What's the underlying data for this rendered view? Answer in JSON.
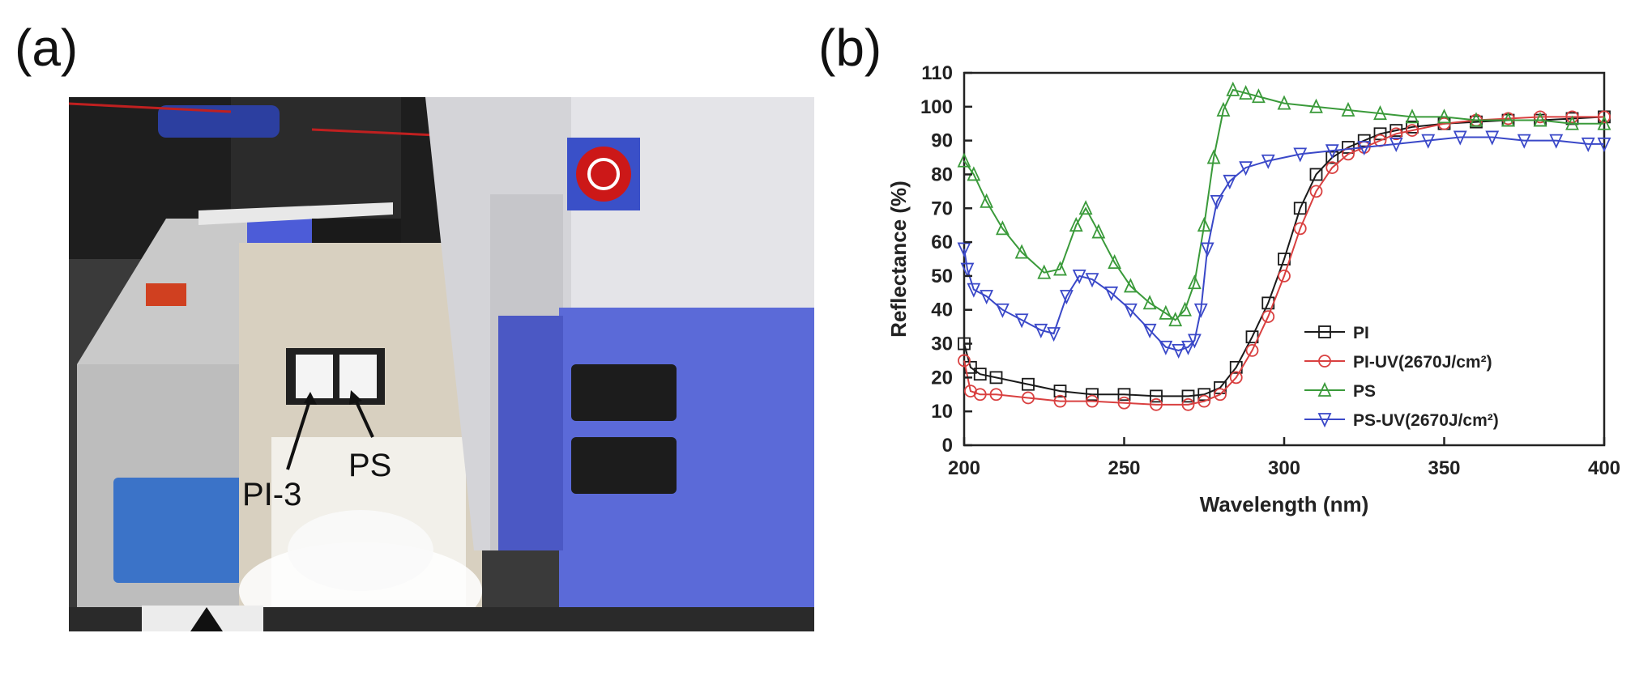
{
  "panels": {
    "a": "(a)",
    "b": "(b)"
  },
  "photo": {
    "labels": {
      "pi": "PI-3",
      "ps": "PS"
    }
  },
  "chart_data": {
    "type": "line",
    "xlabel": "Wavelength (nm)",
    "ylabel": "Reflectance (%)",
    "xlim": [
      200,
      400
    ],
    "ylim": [
      0,
      110
    ],
    "xticks": [
      200,
      250,
      300,
      350,
      400
    ],
    "yticks": [
      0,
      10,
      20,
      30,
      40,
      50,
      60,
      70,
      80,
      90,
      100,
      110
    ],
    "legend_position": "lower-right",
    "series": [
      {
        "name": "PI",
        "color": "#1a1a1a",
        "marker": "square",
        "x": [
          200,
          202,
          205,
          210,
          220,
          230,
          240,
          250,
          260,
          270,
          275,
          280,
          285,
          290,
          295,
          300,
          305,
          310,
          315,
          320,
          325,
          330,
          335,
          340,
          350,
          360,
          370,
          380,
          390,
          400
        ],
        "y": [
          30,
          23,
          21,
          20,
          18,
          16,
          15,
          15,
          14.5,
          14.5,
          15,
          17,
          23,
          32,
          42,
          55,
          70,
          80,
          85,
          88,
          90,
          92,
          93,
          94,
          95,
          95.5,
          96,
          96,
          96.5,
          97
        ]
      },
      {
        "name": "PI-UV(2670J/cm²)",
        "color": "#d94040",
        "marker": "circle",
        "x": [
          200,
          202,
          205,
          210,
          220,
          230,
          240,
          250,
          260,
          270,
          275,
          280,
          285,
          290,
          295,
          300,
          305,
          310,
          315,
          320,
          325,
          330,
          335,
          340,
          350,
          360,
          370,
          380,
          390,
          400
        ],
        "y": [
          25,
          16,
          15,
          15,
          14,
          13,
          13,
          12.5,
          12,
          12,
          13,
          15,
          20,
          28,
          38,
          50,
          64,
          75,
          82,
          86,
          88,
          90,
          92,
          93,
          95,
          96,
          96.5,
          97,
          97,
          97
        ]
      },
      {
        "name": "PS",
        "color": "#3a9a3a",
        "marker": "triangle-up",
        "x": [
          200,
          203,
          207,
          212,
          218,
          225,
          230,
          235,
          238,
          242,
          247,
          252,
          258,
          263,
          266,
          269,
          272,
          275,
          278,
          281,
          284,
          288,
          292,
          300,
          310,
          320,
          330,
          340,
          350,
          360,
          370,
          380,
          390,
          400
        ],
        "y": [
          84,
          80,
          72,
          64,
          57,
          51,
          52,
          65,
          70,
          63,
          54,
          47,
          42,
          39,
          37,
          40,
          48,
          65,
          85,
          99,
          105,
          104,
          103,
          101,
          100,
          99,
          98,
          97,
          97,
          96,
          96,
          96,
          95,
          95
        ]
      },
      {
        "name": "PS-UV(2670J/cm²)",
        "color": "#3a48c8",
        "marker": "triangle-down",
        "x": [
          200,
          201,
          203,
          207,
          212,
          218,
          224,
          228,
          232,
          236,
          240,
          246,
          252,
          258,
          263,
          267,
          270,
          272,
          274,
          276,
          279,
          283,
          288,
          295,
          305,
          315,
          325,
          335,
          345,
          355,
          365,
          375,
          385,
          395,
          400
        ],
        "y": [
          58,
          52,
          46,
          44,
          40,
          37,
          34,
          33,
          44,
          50,
          49,
          45,
          40,
          34,
          29,
          28,
          29,
          31,
          40,
          58,
          72,
          78,
          82,
          84,
          86,
          87,
          88,
          89,
          90,
          91,
          91,
          90,
          90,
          89,
          89
        ]
      }
    ]
  }
}
